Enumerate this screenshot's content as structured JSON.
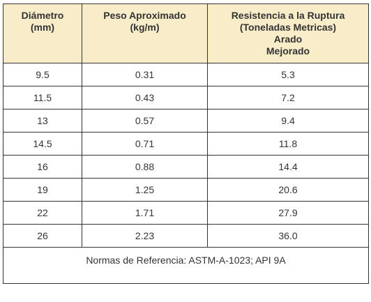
{
  "table": {
    "headers": [
      {
        "lines": [
          "Diámetro",
          "(mm)"
        ]
      },
      {
        "lines": [
          "Peso Aproximado",
          "(kg/m)"
        ]
      },
      {
        "lines": [
          "Resistencia a la Ruptura",
          "(Toneladas Metricas)",
          "Arado",
          "Mejorado"
        ]
      }
    ],
    "rows": [
      [
        "9.5",
        "0.31",
        "5.3"
      ],
      [
        "11.5",
        "0.43",
        "7.2"
      ],
      [
        "13",
        "0.57",
        "9.4"
      ],
      [
        "14.5",
        "0.71",
        "11.8"
      ],
      [
        "16",
        "0.88",
        "14.4"
      ],
      [
        "19",
        "1.25",
        "20.6"
      ],
      [
        "22",
        "1.71",
        "27.9"
      ],
      [
        "26",
        "2.23",
        "36.0"
      ]
    ],
    "footer": "Normas de Referencia:  ASTM-A-1023; API 9A"
  }
}
